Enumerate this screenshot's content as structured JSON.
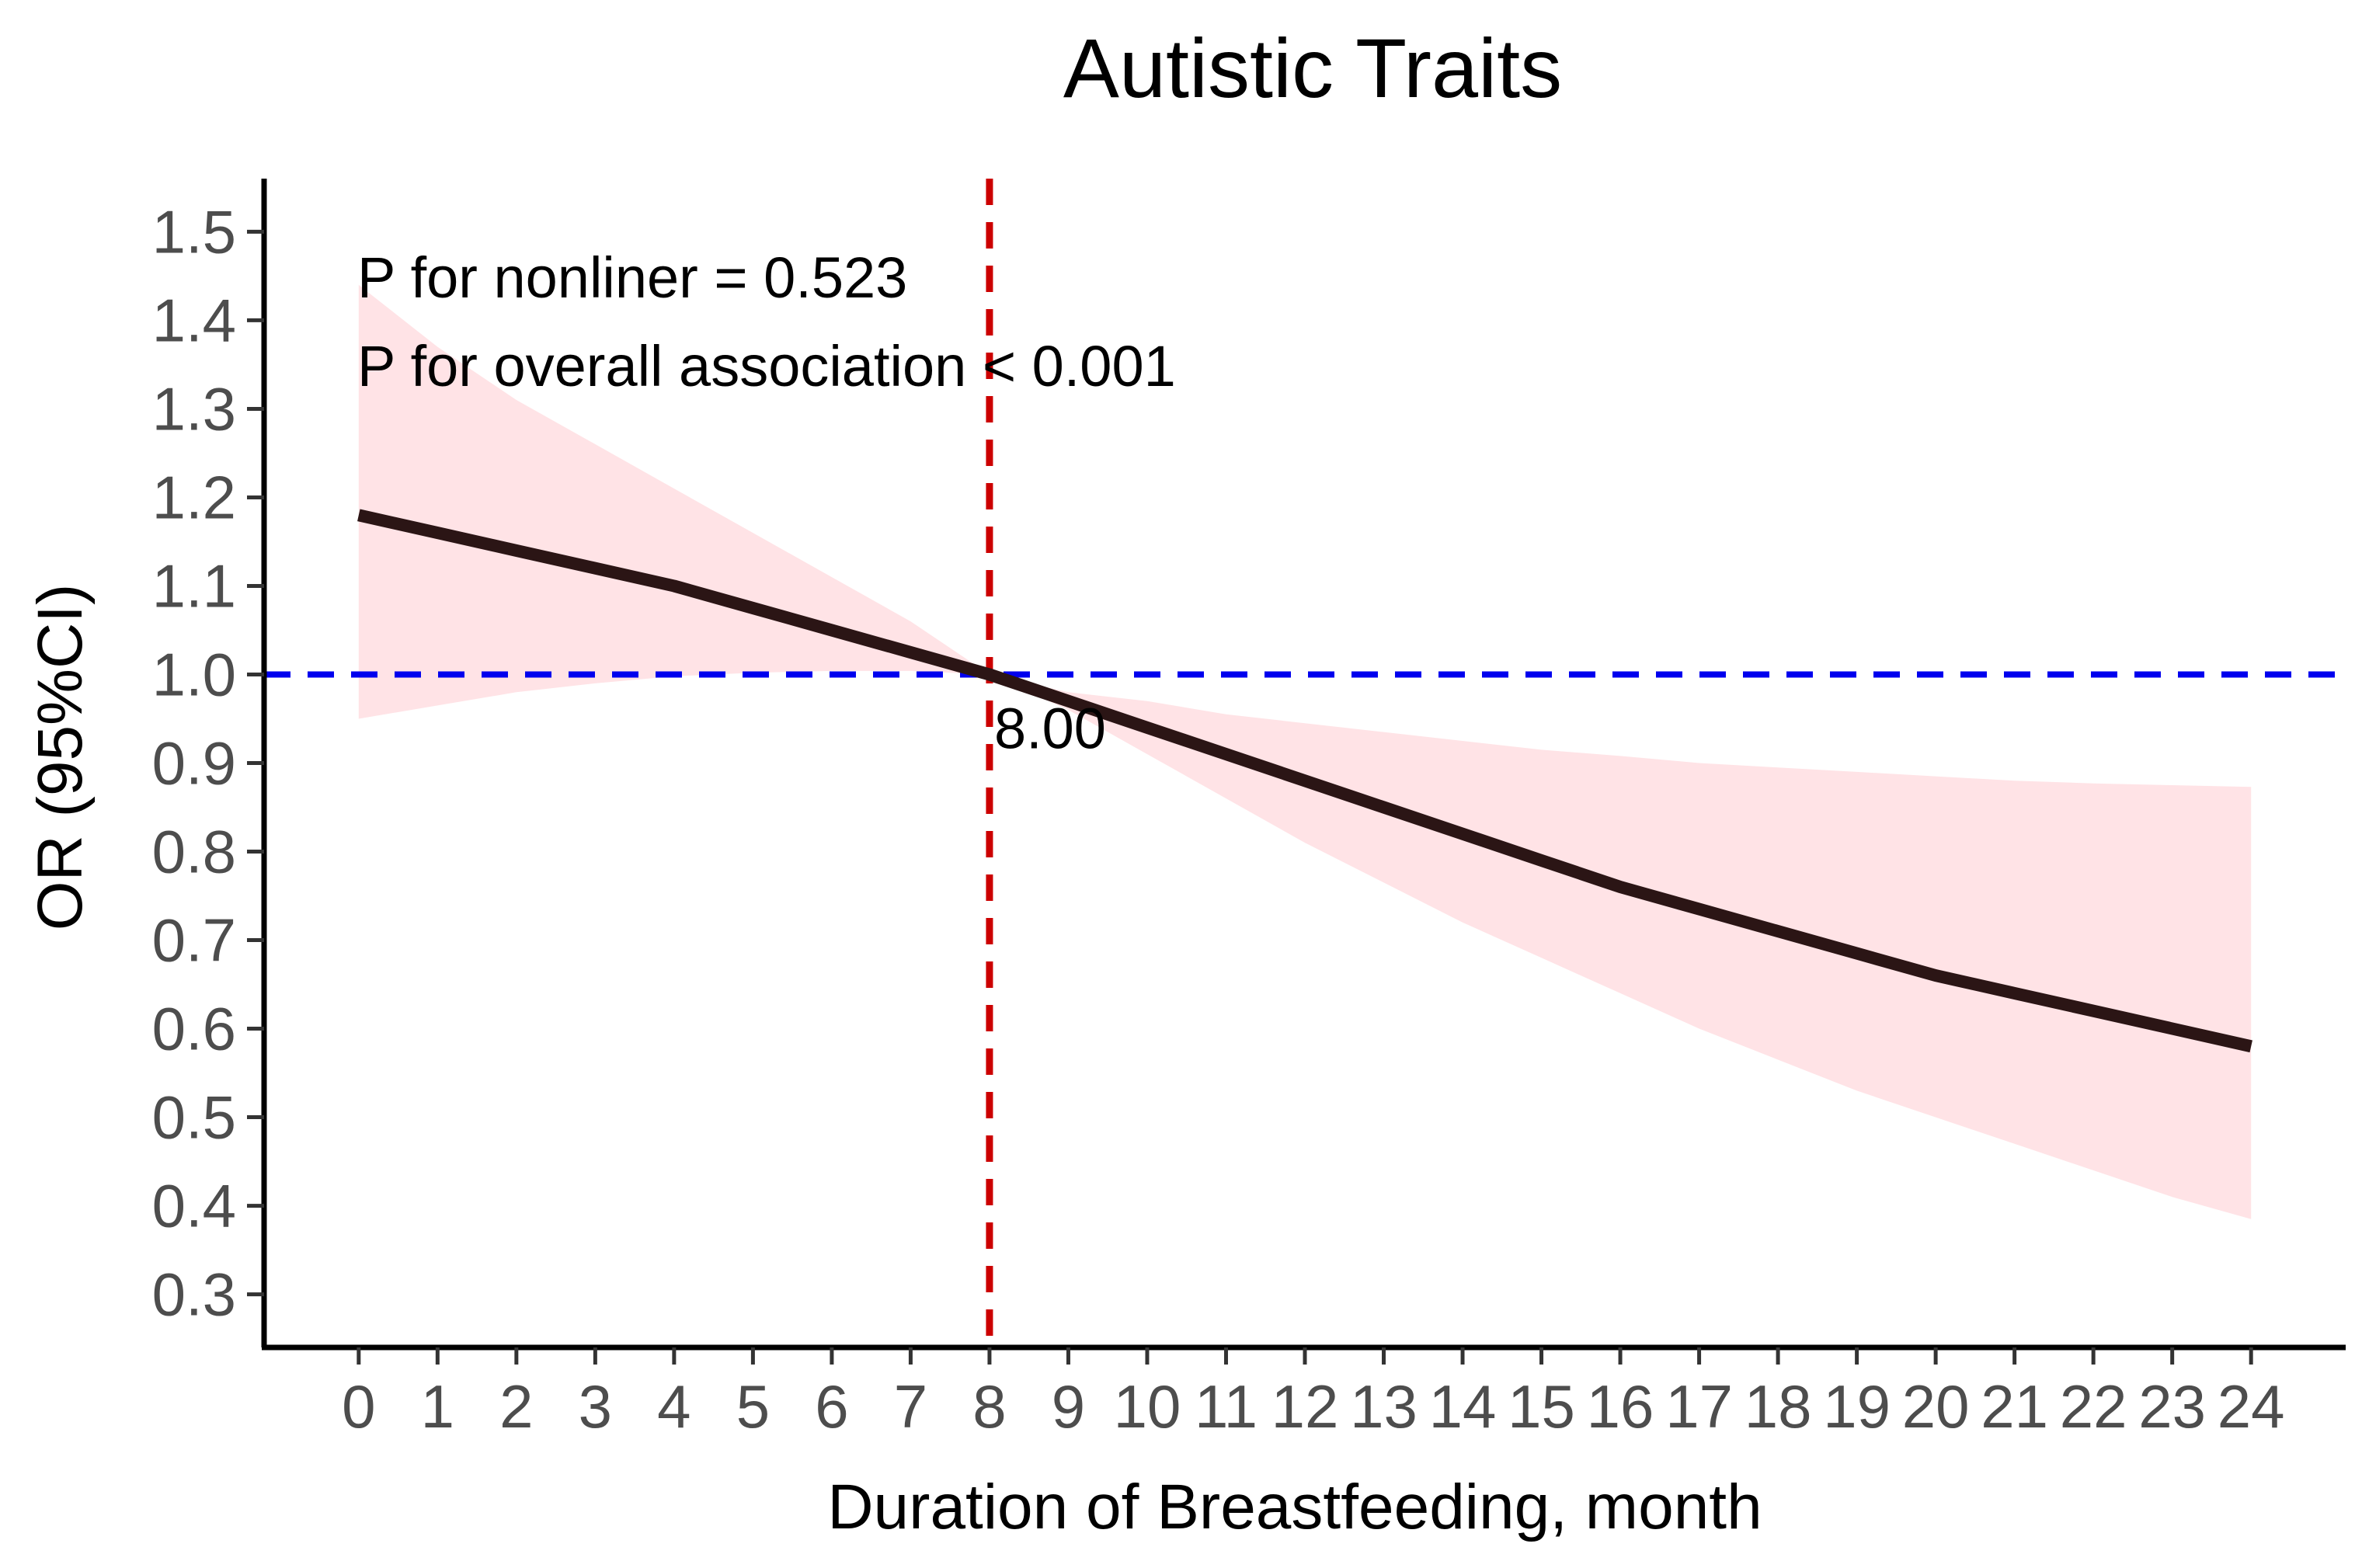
{
  "chart_data": {
    "type": "line",
    "title": "Autistic Traits",
    "xlabel": "Duration of Breastfeeding, month",
    "ylabel": "OR (95%CI)",
    "xlim": [
      -1.2,
      25.2
    ],
    "ylim": [
      0.24,
      1.56
    ],
    "x_ticks": [
      0,
      1,
      2,
      3,
      4,
      5,
      6,
      7,
      8,
      9,
      10,
      11,
      12,
      13,
      14,
      15,
      16,
      17,
      18,
      19,
      20,
      21,
      22,
      23,
      24
    ],
    "y_ticks": [
      0.3,
      0.4,
      0.5,
      0.6,
      0.7,
      0.8,
      0.9,
      1.0,
      1.1,
      1.2,
      1.3,
      1.4,
      1.5
    ],
    "y_tick_labels": [
      "0.3",
      "0.4",
      "0.5",
      "0.6",
      "0.7",
      "0.8",
      "0.9",
      "1.0",
      "1.1",
      "1.2",
      "1.3",
      "1.4",
      "1.5"
    ],
    "series": [
      {
        "name": "OR",
        "x": [
          0,
          1,
          2,
          3,
          4,
          5,
          6,
          7,
          8,
          9,
          10,
          11,
          12,
          13,
          14,
          15,
          16,
          17,
          18,
          19,
          20,
          21,
          22,
          23,
          24
        ],
        "values": [
          1.18,
          1.16,
          1.14,
          1.12,
          1.1,
          1.075,
          1.05,
          1.025,
          1.0,
          0.97,
          0.94,
          0.91,
          0.88,
          0.85,
          0.82,
          0.79,
          0.76,
          0.735,
          0.71,
          0.685,
          0.66,
          0.64,
          0.62,
          0.6,
          0.58
        ],
        "lower": [
          0.95,
          0.965,
          0.98,
          0.99,
          0.998,
          1.002,
          1.004,
          1.004,
          1.0,
          0.96,
          0.91,
          0.86,
          0.81,
          0.765,
          0.72,
          0.68,
          0.64,
          0.6,
          0.565,
          0.53,
          0.5,
          0.47,
          0.44,
          0.41,
          0.385
        ],
        "upper": [
          1.44,
          1.37,
          1.31,
          1.26,
          1.21,
          1.16,
          1.11,
          1.06,
          1.0,
          0.98,
          0.97,
          0.955,
          0.945,
          0.935,
          0.925,
          0.915,
          0.908,
          0.9,
          0.895,
          0.89,
          0.885,
          0.88,
          0.877,
          0.875,
          0.873
        ],
        "line_color": "#2b1515",
        "ci_color": "#ffe3e6"
      }
    ],
    "reference_lines": {
      "horizontal": {
        "y": 1.0,
        "color": "#0000ee",
        "style": "dashed"
      },
      "vertical": {
        "x": 8,
        "color": "#cc0000",
        "style": "dashed",
        "label": "8.00"
      }
    },
    "annotations": [
      "P for nonliner = 0.523",
      "P for overall association < 0.001"
    ]
  }
}
